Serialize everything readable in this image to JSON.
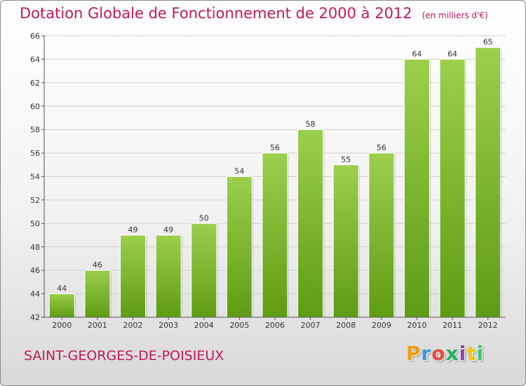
{
  "header": {
    "title": "Dotation Globale de Fonctionnement de 2000 à 2012",
    "unit": "(en milliers d'€)"
  },
  "footer": {
    "commune": "SAINT-GEORGES-DE-POISIEUX",
    "logo_text": "Proxiti",
    "logo_colors": [
      "#f39c12",
      "#3498db",
      "#e74c3c",
      "#27ae60",
      "#8e44ad",
      "#f1c40f",
      "#2ecc71"
    ]
  },
  "colors": {
    "title": "#c2185b",
    "bar_top": "#9ccf4c",
    "bar_bottom": "#5e9c13",
    "grid": "#cfcfcf",
    "axis_text": "#333333"
  },
  "chart_data": {
    "type": "bar",
    "title": "Dotation Globale de Fonctionnement de 2000 à 2012",
    "subtitle": "(en milliers d'€)",
    "categories": [
      "2000",
      "2001",
      "2002",
      "2003",
      "2004",
      "2005",
      "2006",
      "2007",
      "2008",
      "2009",
      "2010",
      "2011",
      "2012"
    ],
    "values": [
      44,
      46,
      49,
      49,
      50,
      54,
      56,
      58,
      55,
      56,
      64,
      64,
      65
    ],
    "ylim": [
      42,
      66
    ],
    "yticks": [
      42,
      44,
      46,
      48,
      50,
      52,
      54,
      56,
      58,
      60,
      62,
      64,
      66
    ],
    "grid": true,
    "legend": "none"
  }
}
